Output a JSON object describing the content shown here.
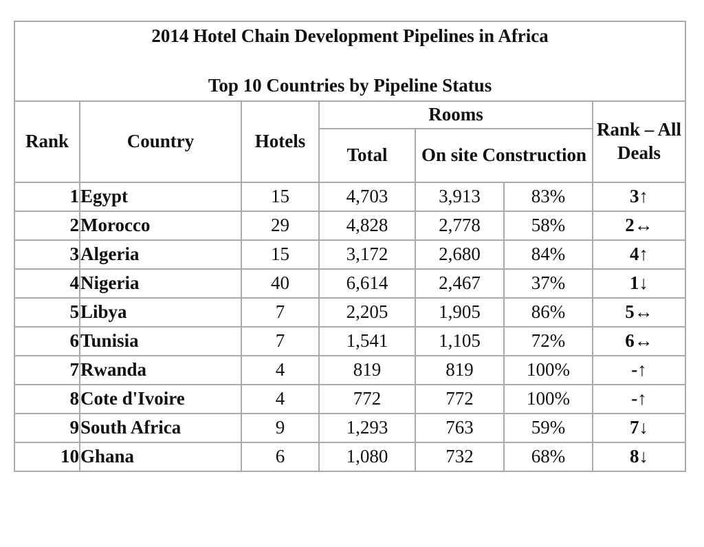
{
  "title": "2014 Hotel Chain Development Pipelines in Africa",
  "subtitle": "Top 10 Countries by Pipeline Status",
  "header": {
    "rank": "Rank",
    "country": "Country",
    "hotels": "Hotels",
    "rooms": "Rooms",
    "total": "Total",
    "on_site": "On site Construction",
    "rank_all": "Rank – All Deals"
  },
  "rows": [
    [
      "1",
      "Egypt",
      "15",
      "4,703",
      "3,913",
      "83%",
      "3↑"
    ],
    [
      "2",
      "Morocco",
      "29",
      "4,828",
      "2,778",
      "58%",
      "2↔"
    ],
    [
      "3",
      "Algeria",
      "15",
      "3,172",
      "2,680",
      "84%",
      "4↑"
    ],
    [
      "4",
      "Nigeria",
      "40",
      "6,614",
      "2,467",
      "37%",
      "1↓"
    ],
    [
      "5",
      "Libya",
      "7",
      "2,205",
      "1,905",
      "86%",
      "5↔"
    ],
    [
      "6",
      "Tunisia",
      "7",
      "1,541",
      "1,105",
      "72%",
      "6↔"
    ],
    [
      "7",
      "Rwanda",
      "4",
      "819",
      "819",
      "100%",
      "-↑"
    ],
    [
      "8",
      "Cote d'Ivoire",
      "4",
      "772",
      "772",
      "100%",
      "-↑"
    ],
    [
      "9",
      "South Africa",
      "9",
      "1,293",
      "763",
      "59%",
      "7↓"
    ],
    [
      "10",
      "Ghana",
      "6",
      "1,080",
      "732",
      "68%",
      "8↓"
    ]
  ]
}
